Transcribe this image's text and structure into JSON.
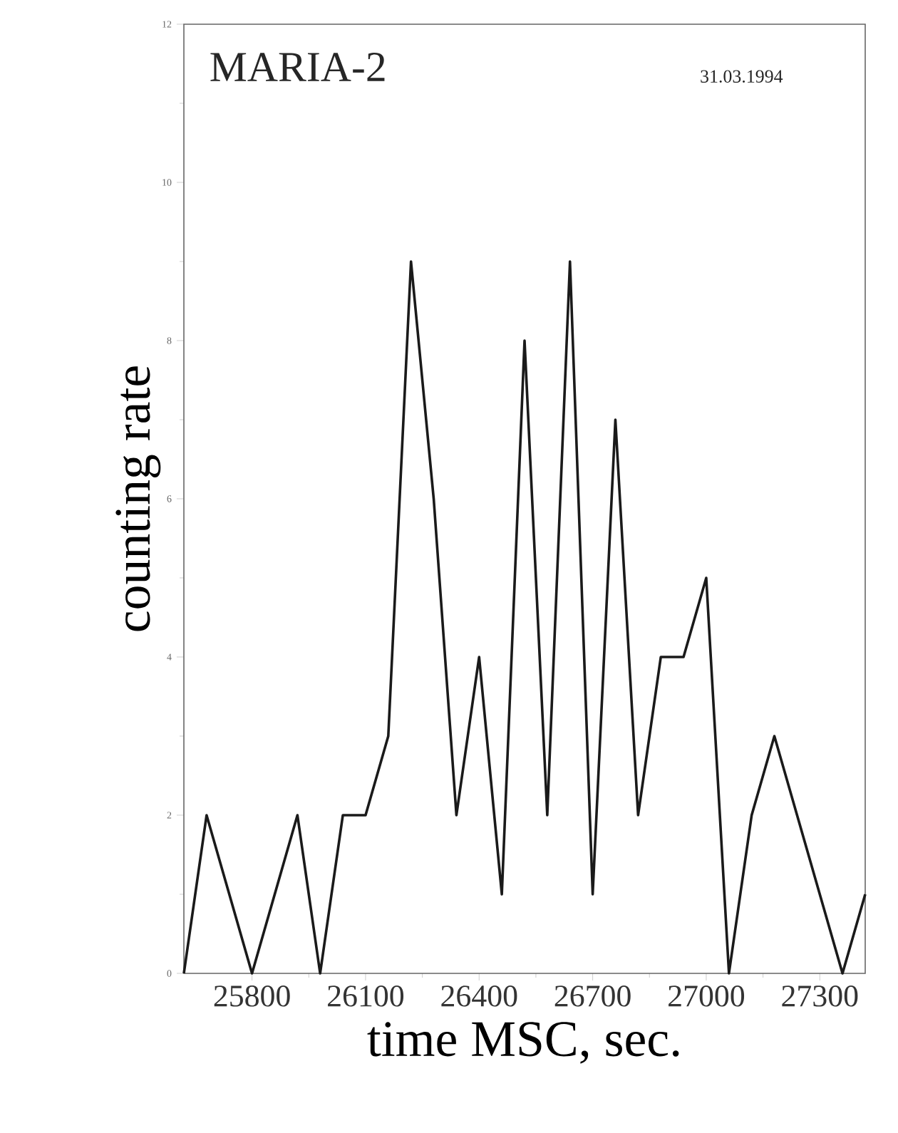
{
  "chart_data": {
    "type": "line",
    "xlabel": "time MSC, sec.",
    "ylabel": "counting rate",
    "annotations": [
      "MARIA-2",
      "31.03.1994"
    ],
    "series": [
      {
        "color": "#1a1a1a",
        "x": [
          25620,
          25680,
          25800,
          25920,
          25980,
          26040,
          26100,
          26160,
          26220,
          26280,
          26340,
          26400,
          26460,
          26520,
          26580,
          26640,
          26700,
          26760,
          26820,
          26880,
          26940,
          27000,
          27060,
          27120,
          27180,
          27360,
          27420
        ],
        "values": [
          0,
          2,
          0,
          2,
          0,
          2,
          2,
          3,
          9,
          6,
          2,
          4,
          1,
          8,
          2,
          9,
          1,
          7,
          2,
          4,
          4,
          5,
          0,
          2,
          3,
          0,
          1
        ]
      }
    ],
    "xlim": [
      25620,
      27420
    ],
    "ylim": [
      0,
      12
    ],
    "xticks": [
      25800,
      26100,
      26400,
      26700,
      27000,
      27300
    ],
    "yticks": [
      0,
      2,
      4,
      6,
      8,
      10,
      12
    ],
    "grid": false,
    "marker": "none",
    "line_style": "solid"
  }
}
